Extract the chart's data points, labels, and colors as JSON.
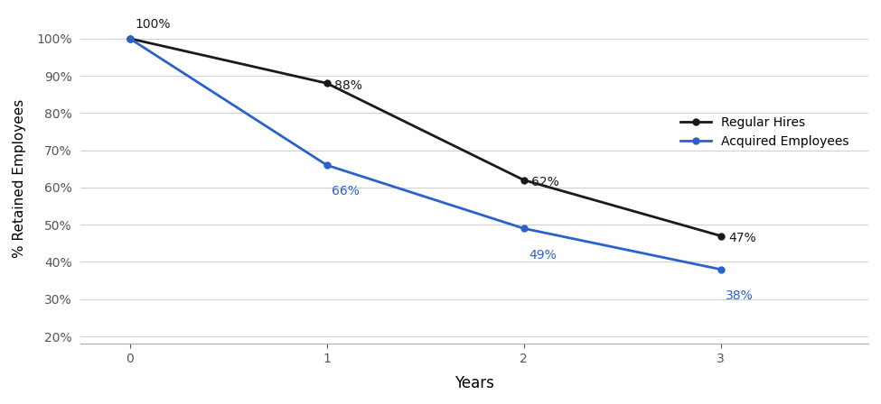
{
  "x": [
    0,
    1,
    2,
    3
  ],
  "regular_hires": [
    100,
    88,
    62,
    47
  ],
  "acquired_employees": [
    100,
    66,
    49,
    38
  ],
  "regular_labels": [
    "100%",
    "88%",
    "62%",
    "47%"
  ],
  "acquired_labels": [
    "66%",
    "49%",
    "38%"
  ],
  "regular_color": "#1a1a1a",
  "acquired_color": "#2962cc",
  "xlabel": "Years",
  "ylabel": "% Retained Employees",
  "legend_regular": "Regular Hires",
  "legend_acquired": "Acquired Employees",
  "ylim": [
    18,
    107
  ],
  "yticks": [
    20,
    30,
    40,
    50,
    60,
    70,
    80,
    90,
    100
  ],
  "xticks": [
    0,
    1,
    2,
    3
  ],
  "background_color": "#ffffff",
  "grid_color": "#d0d0d0"
}
